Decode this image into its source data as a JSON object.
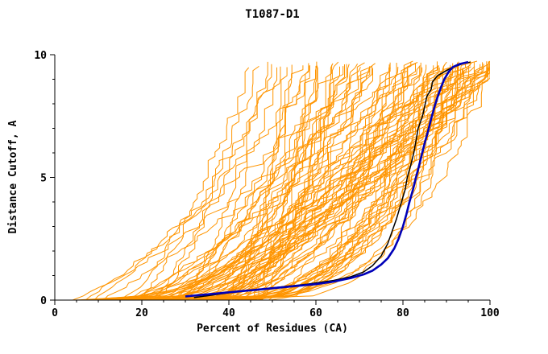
{
  "title": "T1087-D1",
  "chart_data": {
    "type": "line",
    "title": "T1087-D1",
    "xlabel": "Percent of Residues (CA)",
    "ylabel": "Distance Cutoff, A",
    "xlim": [
      0,
      100
    ],
    "ylim": [
      0,
      10
    ],
    "x_ticks": [
      0,
      20,
      40,
      60,
      80,
      100
    ],
    "x_minor_step": 5,
    "y_ticks": [
      0,
      5,
      10
    ],
    "y_minor_step": 1,
    "grid": "off",
    "legend": "none",
    "colors": {
      "ensemble": "#ff9500",
      "model_black": "#000000",
      "model_blue": "#0000b8",
      "axis": "#000000"
    },
    "series": [
      {
        "name": "model-black",
        "color": "#000000",
        "width": 1.5,
        "points": [
          [
            32,
            0.1
          ],
          [
            40,
            0.3
          ],
          [
            50,
            0.5
          ],
          [
            58,
            0.65
          ],
          [
            64,
            0.8
          ],
          [
            68,
            0.95
          ],
          [
            71,
            1.15
          ],
          [
            73,
            1.4
          ],
          [
            75,
            1.8
          ],
          [
            76.5,
            2.3
          ],
          [
            77.5,
            2.8
          ],
          [
            78.5,
            3.3
          ],
          [
            79.5,
            3.9
          ],
          [
            80.5,
            4.5
          ],
          [
            81,
            5.0
          ],
          [
            81.8,
            5.5
          ],
          [
            82.5,
            6.0
          ],
          [
            83,
            6.5
          ],
          [
            83.5,
            7.0
          ],
          [
            84.5,
            7.5
          ],
          [
            85,
            7.9
          ],
          [
            85.5,
            8.3
          ],
          [
            86.5,
            8.6
          ],
          [
            86.8,
            8.9
          ],
          [
            88,
            9.15
          ],
          [
            89.5,
            9.3
          ],
          [
            91,
            9.45
          ],
          [
            92.5,
            9.55
          ],
          [
            94,
            9.65
          ],
          [
            95.5,
            9.7
          ]
        ]
      },
      {
        "name": "model-blue",
        "color": "#0000b8",
        "width": 2.6,
        "points": [
          [
            30,
            0.15
          ],
          [
            36,
            0.25
          ],
          [
            42,
            0.35
          ],
          [
            48,
            0.45
          ],
          [
            54,
            0.55
          ],
          [
            60,
            0.65
          ],
          [
            64,
            0.75
          ],
          [
            68,
            0.9
          ],
          [
            71,
            1.05
          ],
          [
            73,
            1.2
          ],
          [
            75,
            1.45
          ],
          [
            76.5,
            1.7
          ],
          [
            78,
            2.1
          ],
          [
            79,
            2.5
          ],
          [
            80,
            3.0
          ],
          [
            80.8,
            3.5
          ],
          [
            81.5,
            4.0
          ],
          [
            82.3,
            4.5
          ],
          [
            83,
            5.0
          ],
          [
            83.6,
            5.4
          ],
          [
            84.3,
            5.9
          ],
          [
            85,
            6.4
          ],
          [
            85.8,
            6.9
          ],
          [
            86.5,
            7.4
          ],
          [
            87.3,
            7.9
          ],
          [
            88,
            8.3
          ],
          [
            88.8,
            8.7
          ],
          [
            89.5,
            9.0
          ],
          [
            90.5,
            9.3
          ],
          [
            91.5,
            9.5
          ],
          [
            93,
            9.62
          ],
          [
            95,
            9.7
          ]
        ]
      }
    ],
    "ensemble": {
      "name": "prediction-curves",
      "color": "#ff9500",
      "width": 1,
      "count": 95,
      "seed": 1087,
      "y_max_range": [
        9.45,
        9.75
      ]
    }
  }
}
